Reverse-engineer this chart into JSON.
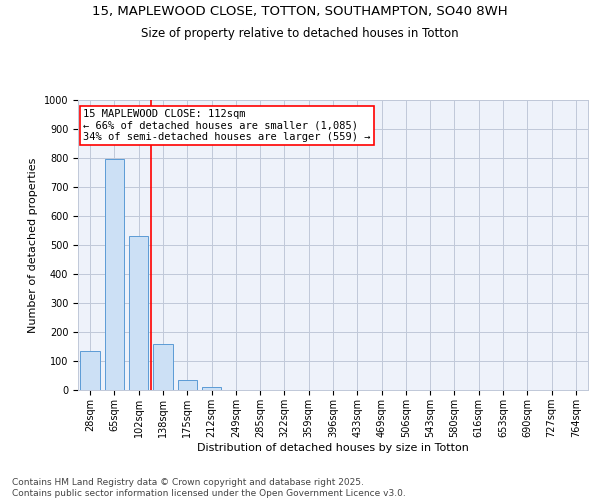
{
  "title_line1": "15, MAPLEWOOD CLOSE, TOTTON, SOUTHAMPTON, SO40 8WH",
  "title_line2": "Size of property relative to detached houses in Totton",
  "xlabel": "Distribution of detached houses by size in Totton",
  "ylabel": "Number of detached properties",
  "categories": [
    "28sqm",
    "65sqm",
    "102sqm",
    "138sqm",
    "175sqm",
    "212sqm",
    "249sqm",
    "285sqm",
    "322sqm",
    "359sqm",
    "396sqm",
    "433sqm",
    "469sqm",
    "506sqm",
    "543sqm",
    "580sqm",
    "616sqm",
    "653sqm",
    "690sqm",
    "727sqm",
    "764sqm"
  ],
  "values": [
    135,
    795,
    530,
    160,
    35,
    10,
    0,
    0,
    0,
    0,
    0,
    0,
    0,
    0,
    0,
    0,
    0,
    0,
    0,
    0,
    0
  ],
  "bar_color": "#cce0f5",
  "bar_edge_color": "#5b9bd5",
  "vline_color": "red",
  "annotation_text": "15 MAPLEWOOD CLOSE: 112sqm\n← 66% of detached houses are smaller (1,085)\n34% of semi-detached houses are larger (559) →",
  "annotation_box_color": "white",
  "annotation_box_edge": "red",
  "ylim": [
    0,
    1000
  ],
  "yticks": [
    0,
    100,
    200,
    300,
    400,
    500,
    600,
    700,
    800,
    900,
    1000
  ],
  "grid_color": "#c0c8d8",
  "bg_color": "#eef2fa",
  "footer_text": "Contains HM Land Registry data © Crown copyright and database right 2025.\nContains public sector information licensed under the Open Government Licence v3.0.",
  "title_fontsize": 9.5,
  "subtitle_fontsize": 8.5,
  "axis_label_fontsize": 8,
  "tick_fontsize": 7,
  "annotation_fontsize": 7.5,
  "footer_fontsize": 6.5
}
